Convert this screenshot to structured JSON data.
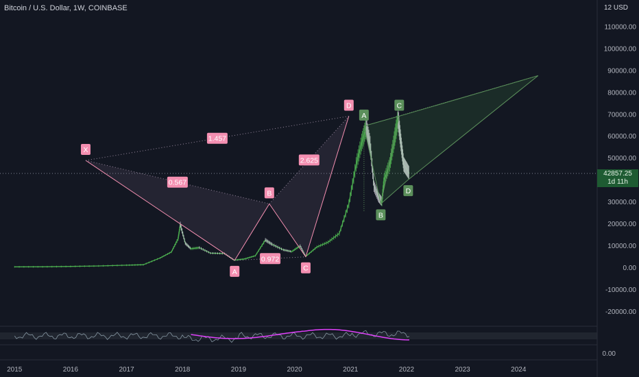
{
  "header": {
    "title": "Bitcoin / U.S. Dollar, 1W, COINBASE",
    "axis_currency": "USD",
    "axis_mode_prefix": "12"
  },
  "current_price": {
    "value": "42857.25",
    "countdown": "1d 11h",
    "price": 42857.25
  },
  "colors": {
    "background": "#131722",
    "up": "#4caf50",
    "down": "#c8c8d0",
    "pattern_pink": "#f48fb1",
    "pattern_green": "#5b8f5b",
    "rsi_line": "#e040fb",
    "rsi_signal": "#a0b4c0"
  },
  "chart_data": {
    "type": "line",
    "title": "Bitcoin / U.S. Dollar, 1W, COINBASE",
    "x_ticks": [
      "2015",
      "2016",
      "2017",
      "2018",
      "2019",
      "2020",
      "2021",
      "2022",
      "2023",
      "2024"
    ],
    "y_ticks": [
      "110000.00",
      "100000.00",
      "90000.00",
      "80000.00",
      "70000.00",
      "60000.00",
      "50000.00",
      "30000.00",
      "20000.00",
      "10000.00",
      "0.00",
      "-10000.00",
      "-20000.00"
    ],
    "ylim": [
      -25000,
      122000
    ],
    "xlim": [
      2014.85,
      2025.0
    ],
    "series": [
      {
        "values": [
          [
            2015.0,
            250
          ],
          [
            2015.5,
            260
          ],
          [
            2016.0,
            420
          ],
          [
            2016.5,
            650
          ],
          [
            2017.0,
            1000
          ],
          [
            2017.3,
            1200
          ],
          [
            2017.6,
            4300
          ],
          [
            2017.8,
            7000
          ],
          [
            2017.92,
            13000
          ],
          [
            2017.96,
            19500
          ],
          [
            2018.05,
            11000
          ],
          [
            2018.15,
            8500
          ],
          [
            2018.3,
            9000
          ],
          [
            2018.5,
            6500
          ],
          [
            2018.75,
            6300
          ],
          [
            2018.92,
            3300
          ],
          [
            2019.1,
            3800
          ],
          [
            2019.3,
            5300
          ],
          [
            2019.48,
            12500
          ],
          [
            2019.6,
            10500
          ],
          [
            2019.8,
            8000
          ],
          [
            2019.95,
            7200
          ],
          [
            2020.1,
            9800
          ],
          [
            2020.2,
            5000
          ],
          [
            2020.4,
            9300
          ],
          [
            2020.6,
            11500
          ],
          [
            2020.8,
            15500
          ],
          [
            2020.97,
            29000
          ],
          [
            2021.1,
            47000
          ],
          [
            2021.2,
            57000
          ],
          [
            2021.28,
            64000
          ],
          [
            2021.35,
            56000
          ],
          [
            2021.42,
            37000
          ],
          [
            2021.5,
            32000
          ],
          [
            2021.56,
            30000
          ],
          [
            2021.6,
            40000
          ],
          [
            2021.7,
            47000
          ],
          [
            2021.78,
            58000
          ],
          [
            2021.85,
            68000
          ],
          [
            2021.9,
            57000
          ],
          [
            2021.95,
            47000
          ],
          [
            2022.0,
            45000
          ],
          [
            2022.05,
            42857
          ]
        ]
      }
    ],
    "xabcd_pattern": {
      "points": [
        {
          "label": "X",
          "x": 2016.27,
          "y": 48800
        },
        {
          "label": "A",
          "x": 2018.93,
          "y": 3200
        },
        {
          "label": "B",
          "x": 2019.55,
          "y": 29000
        },
        {
          "label": "C",
          "x": 2020.2,
          "y": 4800
        },
        {
          "label": "D",
          "x": 2020.97,
          "y": 69000
        }
      ],
      "ratios": [
        {
          "label": "0.567",
          "between": "X-B"
        },
        {
          "label": "0.972",
          "between": "A-C"
        },
        {
          "label": "2.625",
          "between": "B-D"
        },
        {
          "label": "1.457",
          "between": "X-D"
        }
      ]
    },
    "abcd_pattern": {
      "points": [
        {
          "label": "A",
          "x": 2021.24,
          "y": 64500
        },
        {
          "label": "B",
          "x": 2021.54,
          "y": 29000
        },
        {
          "label": "C",
          "x": 2021.87,
          "y": 69000
        },
        {
          "label": "D",
          "x": 2022.03,
          "y": 40000
        }
      ],
      "projection": {
        "x": 2024.35,
        "y": 87500
      }
    },
    "rsi_panel": {
      "value_tick": "0.00"
    }
  }
}
